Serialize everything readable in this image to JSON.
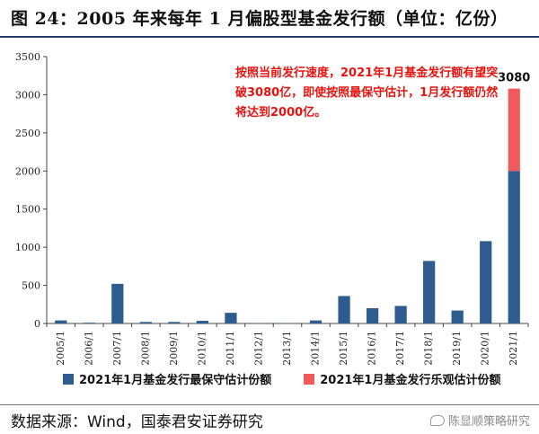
{
  "title": "图 24：2005 年来每年 1 月偏股型基金发行额（单位：亿份）",
  "source": "数据来源：Wind，国泰君安证券研究",
  "watermark": "陈显顺策略研究",
  "annotation": "按照当前发行速度，2021年1月基金发行额有望突破3080亿，即使按照最保守估计，1月发行额仍然将达到2000亿。",
  "colors": {
    "conservative": "#2e5c8e",
    "optimistic": "#f05a5a",
    "annotation": "#e8120e"
  },
  "chart_data": {
    "type": "bar",
    "stacked": true,
    "categories": [
      "2005/1",
      "2006/1",
      "2007/1",
      "2008/1",
      "2009/1",
      "2010/1",
      "2011/1",
      "2012/1",
      "2013/1",
      "2014/1",
      "2015/1",
      "2016/1",
      "2017/1",
      "2018/1",
      "2019/1",
      "2020/1",
      "2021/1"
    ],
    "series": [
      {
        "name": "2021年1月基金发行最保守估计份额",
        "values": [
          40,
          10,
          520,
          20,
          20,
          35,
          140,
          5,
          5,
          40,
          360,
          200,
          230,
          820,
          170,
          1080,
          2000
        ]
      },
      {
        "name": "2021年1月基金发行乐观估计份额",
        "values": [
          0,
          0,
          0,
          0,
          0,
          0,
          0,
          0,
          0,
          0,
          0,
          0,
          0,
          0,
          0,
          0,
          1080
        ]
      }
    ],
    "data_labels": [
      {
        "category": "2021/1",
        "text": "3080"
      }
    ],
    "yticks": [
      0,
      500,
      1000,
      1500,
      2000,
      2500,
      3000,
      3500
    ],
    "ylim": [
      0,
      3500
    ],
    "grid": false,
    "legend_position": "bottom"
  }
}
